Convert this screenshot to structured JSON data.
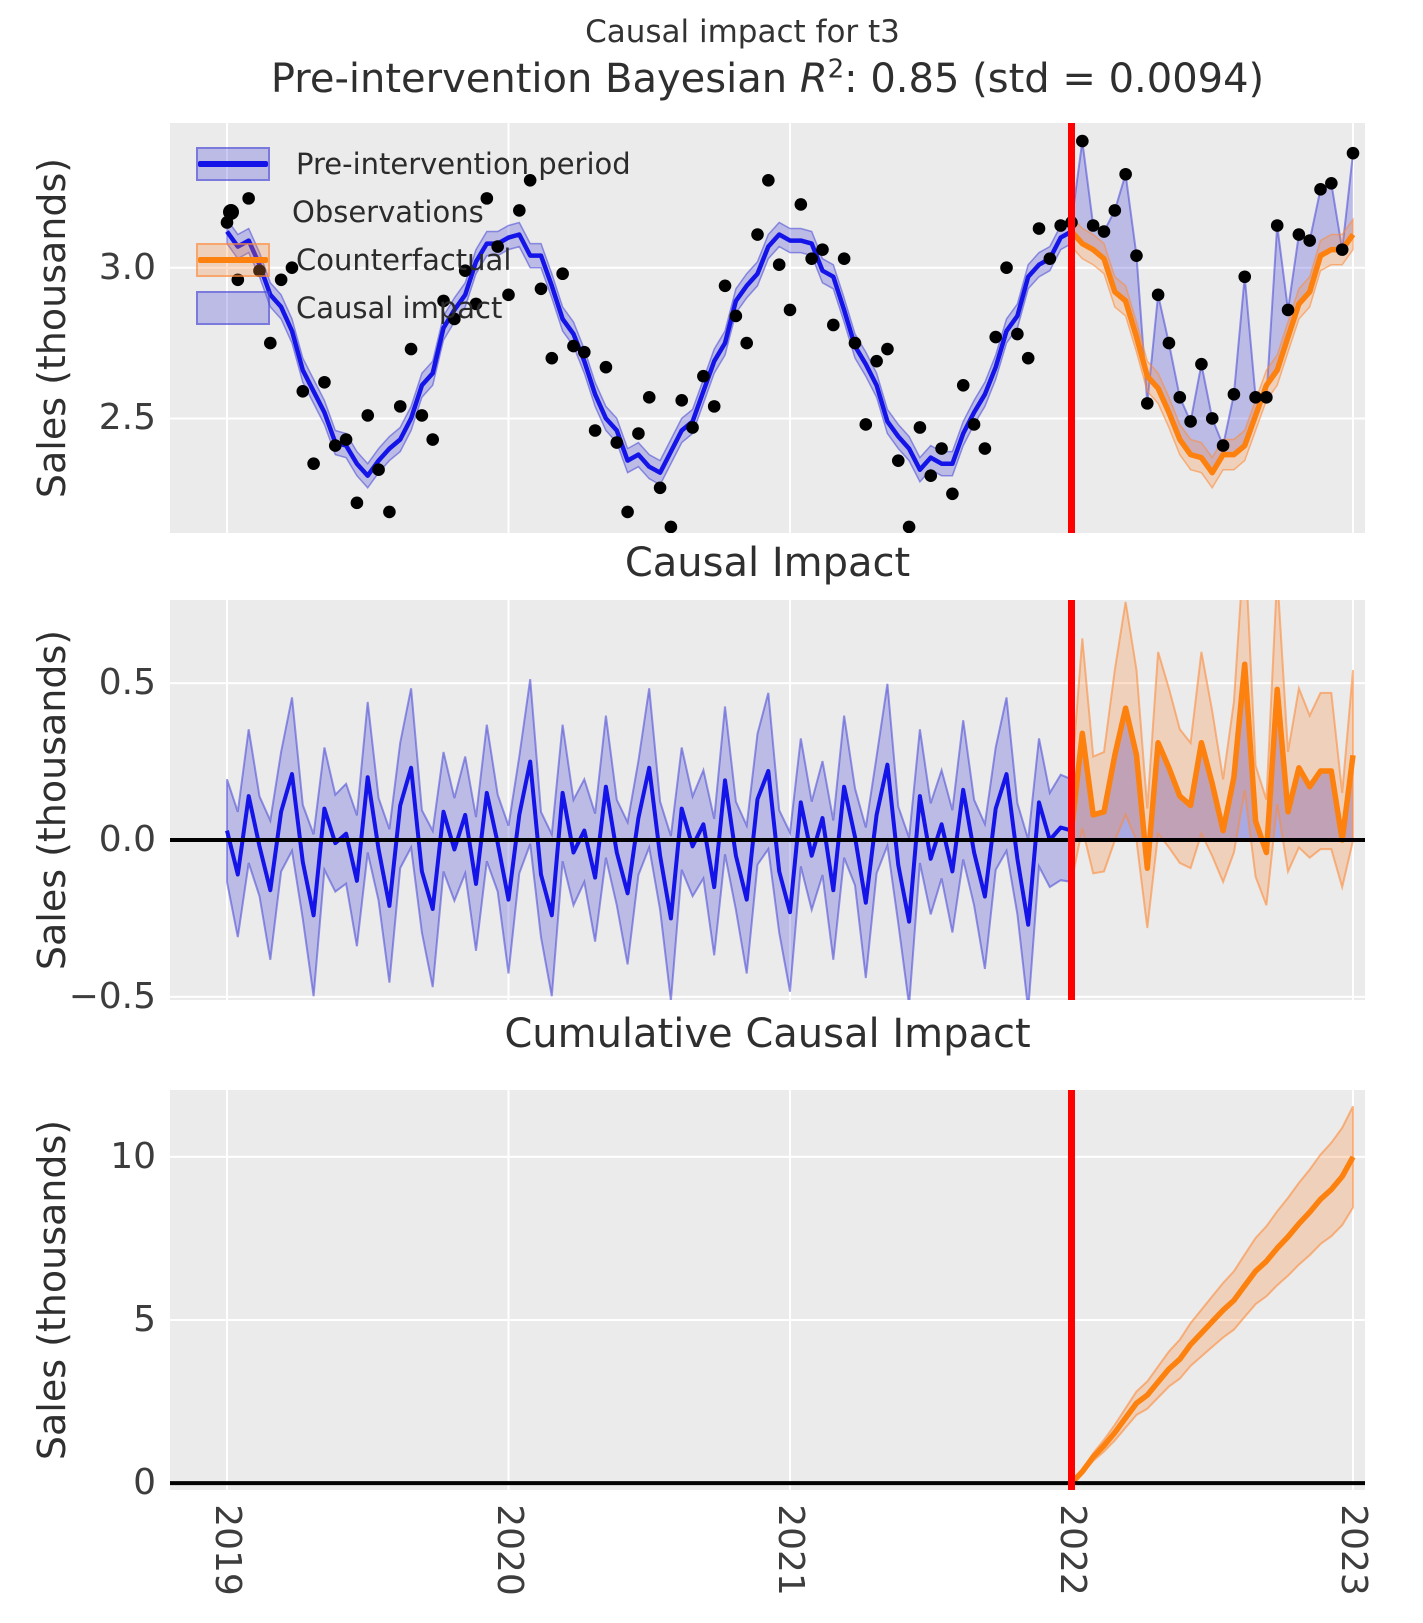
{
  "chart_data": {
    "type": "line",
    "suptitle": "Causal impact for t3",
    "ylabel": "Sales (thousands)",
    "xlabel": "",
    "grid": true,
    "legend_position": "upper-left",
    "panels": [
      {
        "title_prefix": "Pre-intervention Bayesian ",
        "title_math": "R",
        "title_sup": "2",
        "title_suffix": ": 0.85 (std = 0.0094)",
        "ylim": [
          2.12,
          3.48
        ]
      },
      {
        "title": "Causal Impact",
        "ylim": [
          -0.51,
          0.765
        ]
      },
      {
        "title": "Cumulative Causal Impact",
        "ylim": [
          -0.21,
          12.05
        ]
      }
    ],
    "axes": {
      "x_ticks": [
        {
          "label": "2019",
          "value": 2019
        },
        {
          "label": "2020",
          "value": 2020
        },
        {
          "label": "2021",
          "value": 2021
        },
        {
          "label": "2022",
          "value": 2022
        },
        {
          "label": "2023",
          "value": 2023
        }
      ],
      "panel1_yticks": [
        {
          "label": "3.0",
          "value": 3.0
        },
        {
          "label": "2.5",
          "value": 2.5
        }
      ],
      "panel2_yticks": [
        {
          "label": "0.5",
          "value": 0.5
        },
        {
          "label": "0.0",
          "value": 0.0
        },
        {
          "label": "−0.5",
          "value": -0.5
        }
      ],
      "panel3_yticks": [
        {
          "label": "10",
          "value": 10
        },
        {
          "label": "5",
          "value": 5
        },
        {
          "label": "0",
          "value": 0
        }
      ]
    },
    "legend": [
      {
        "label": "Pre-intervention period",
        "type": "band-line",
        "color": "blue"
      },
      {
        "label": "Observations",
        "type": "dot",
        "color": "black"
      },
      {
        "label": "Counterfactual",
        "type": "band-line",
        "color": "orange"
      },
      {
        "label": "Causal impact",
        "type": "patch",
        "color": "blue"
      }
    ],
    "x_axis": {
      "start": 2019,
      "step_years": 0.0384615,
      "n_points": 105,
      "xlim": [
        2018.8,
        2023.04
      ]
    },
    "intervention": {
      "x": 2022,
      "index": 78
    },
    "series": {
      "observations": [
        3.15,
        2.96,
        3.23,
        2.99,
        2.75,
        2.96,
        3.0,
        2.59,
        2.35,
        2.62,
        2.41,
        2.43,
        2.22,
        2.51,
        2.33,
        2.19,
        2.54,
        2.73,
        2.51,
        2.43,
        2.89,
        2.83,
        2.99,
        2.88,
        3.23,
        3.07,
        2.91,
        3.19,
        3.29,
        2.93,
        2.7,
        2.98,
        2.74,
        2.72,
        2.46,
        2.67,
        2.42,
        2.19,
        2.45,
        2.57,
        2.27,
        2.14,
        2.56,
        2.47,
        2.64,
        2.54,
        2.94,
        2.84,
        2.75,
        3.11,
        3.29,
        3.01,
        2.86,
        3.21,
        3.03,
        3.06,
        2.81,
        3.03,
        2.75,
        2.48,
        2.69,
        2.73,
        2.36,
        2.14,
        2.47,
        2.31,
        2.4,
        2.25,
        2.61,
        2.48,
        2.4,
        2.77,
        3.0,
        2.78,
        2.7,
        3.13,
        3.03,
        3.14,
        3.15,
        3.42,
        3.14,
        3.12,
        3.19,
        3.31,
        3.04,
        2.55,
        2.91,
        2.75,
        2.57,
        2.49,
        2.68,
        2.5,
        2.41,
        2.58,
        2.97,
        2.57,
        2.57,
        3.14,
        2.86,
        3.11,
        3.09,
        3.26,
        3.28,
        3.06,
        3.38
      ],
      "model_mean": [
        3.12,
        3.07,
        3.09,
        3.01,
        2.91,
        2.87,
        2.79,
        2.66,
        2.59,
        2.52,
        2.42,
        2.41,
        2.35,
        2.31,
        2.36,
        2.4,
        2.43,
        2.5,
        2.61,
        2.65,
        2.8,
        2.86,
        2.91,
        3.02,
        3.08,
        3.08,
        3.1,
        3.11,
        3.04,
        3.04,
        2.94,
        2.83,
        2.78,
        2.69,
        2.58,
        2.5,
        2.46,
        2.36,
        2.38,
        2.34,
        2.32,
        2.39,
        2.46,
        2.49,
        2.59,
        2.69,
        2.75,
        2.89,
        2.94,
        2.98,
        3.07,
        3.11,
        3.09,
        3.09,
        3.08,
        2.99,
        2.97,
        2.86,
        2.74,
        2.68,
        2.61,
        2.49,
        2.44,
        2.4,
        2.33,
        2.37,
        2.35,
        2.35,
        2.45,
        2.52,
        2.58,
        2.67,
        2.79,
        2.84,
        2.97,
        3.01,
        3.03,
        3.1,
        3.12,
        3.08,
        3.06,
        3.03,
        2.92,
        2.89,
        2.77,
        2.64,
        2.6,
        2.52,
        2.43,
        2.38,
        2.37,
        2.32,
        2.38,
        2.38,
        2.41,
        2.51,
        2.61,
        2.66,
        2.77,
        2.88,
        2.92,
        3.04,
        3.06,
        3.06,
        3.11
      ]
    },
    "cumulative": [
      0.0,
      0.35,
      0.8,
      1.15,
      1.55,
      2.0,
      2.45,
      2.7,
      3.1,
      3.5,
      3.8,
      4.25,
      4.6,
      4.95,
      5.3,
      5.6,
      6.05,
      6.5,
      6.8,
      7.2,
      7.55,
      7.95,
      8.3,
      8.7,
      9.0,
      9.4,
      10.0
    ],
    "bands": {
      "model_half_pre": 0.04,
      "model_half_post": 0.05,
      "impact_base": 0.15,
      "impact_scale": 0.45,
      "cumulative_end_half": 1.55
    },
    "colors": {
      "blue_line": "#1414e8",
      "blue_edge": "rgba(70,70,215,0.55)",
      "blue_fill": "rgba(88,88,218,0.32)",
      "blue_fill_strong": "rgba(88,88,218,0.45)",
      "orange_line": "#fd810e",
      "orange_edge": "rgba(251,140,60,0.6)",
      "orange_fill": "rgba(251,140,60,0.28)",
      "red_line": "#ff0000",
      "observation_dot": "#000000",
      "axes_bg": "#ebebeb",
      "grid": "#ffffff",
      "zero_line": "#000000",
      "text": "#2f2f2f"
    }
  }
}
